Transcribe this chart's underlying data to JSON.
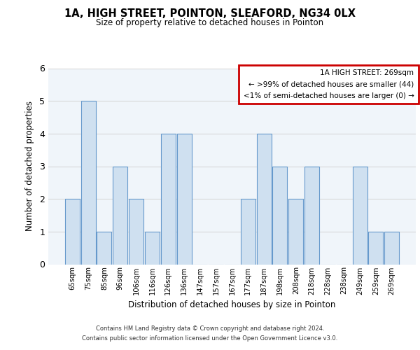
{
  "title": "1A, HIGH STREET, POINTON, SLEAFORD, NG34 0LX",
  "subtitle": "Size of property relative to detached houses in Pointon",
  "xlabel": "Distribution of detached houses by size in Pointon",
  "ylabel": "Number of detached properties",
  "categories": [
    "65sqm",
    "75sqm",
    "85sqm",
    "96sqm",
    "106sqm",
    "116sqm",
    "126sqm",
    "136sqm",
    "147sqm",
    "157sqm",
    "167sqm",
    "177sqm",
    "187sqm",
    "198sqm",
    "208sqm",
    "218sqm",
    "228sqm",
    "238sqm",
    "249sqm",
    "259sqm",
    "269sqm"
  ],
  "values": [
    2,
    5,
    1,
    3,
    2,
    1,
    4,
    4,
    0,
    0,
    0,
    2,
    4,
    3,
    2,
    3,
    0,
    0,
    3,
    1,
    1
  ],
  "bar_color": "#cfe0f0",
  "bar_edgecolor": "#6699cc",
  "ylim": [
    0,
    6
  ],
  "yticks": [
    0,
    1,
    2,
    3,
    4,
    5,
    6
  ],
  "legend_title": "1A HIGH STREET: 269sqm",
  "legend_line1": "← >99% of detached houses are smaller (44)",
  "legend_line2": "<1% of semi-detached houses are larger (0) →",
  "legend_box_color": "#ffffff",
  "legend_box_edgecolor": "#cc0000",
  "footer_line1": "Contains HM Land Registry data © Crown copyright and database right 2024.",
  "footer_line2": "Contains public sector information licensed under the Open Government Licence v3.0.",
  "bg_color": "#ffffff",
  "plot_bg_color": "#f0f5fa",
  "grid_color": "#d8d8d8"
}
